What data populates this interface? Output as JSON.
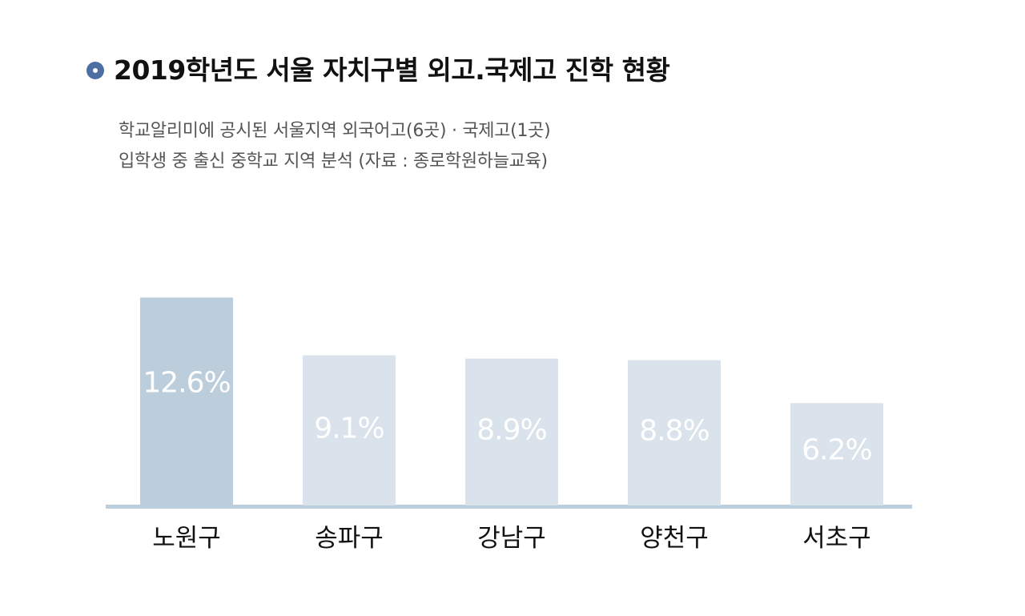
{
  "header": {
    "title": "2019학년도 서울 자치구별 외고.국제고 진학 현황",
    "subtitle_line1": "학교알리미에 공시된 서울지역 외국어고(6곳) · 국제고(1곳)",
    "subtitle_line2": "입학생 중 출신 중학교 지역 분석 (자료 : 종로학원하늘교육)"
  },
  "colors": {
    "bullet": "#4d6ea3",
    "highlight_bar": "#bccddc",
    "bar": "#dae2eb",
    "baseline": "#bccddc",
    "bar_label": "#ffffff",
    "category_label": "#111111"
  },
  "chart_data": {
    "type": "bar",
    "title": "2019학년도 서울 자치구별 외고.국제고 진학 현황",
    "categories": [
      "노원구",
      "송파구",
      "강남구",
      "양천구",
      "서초구"
    ],
    "values": [
      12.6,
      9.1,
      8.9,
      8.8,
      6.2
    ],
    "value_labels": [
      "12.6%",
      "9.1%",
      "8.9%",
      "8.8%",
      "6.2%"
    ],
    "unit": "%",
    "highlight_index": 0,
    "grid": false,
    "legend": "none"
  }
}
